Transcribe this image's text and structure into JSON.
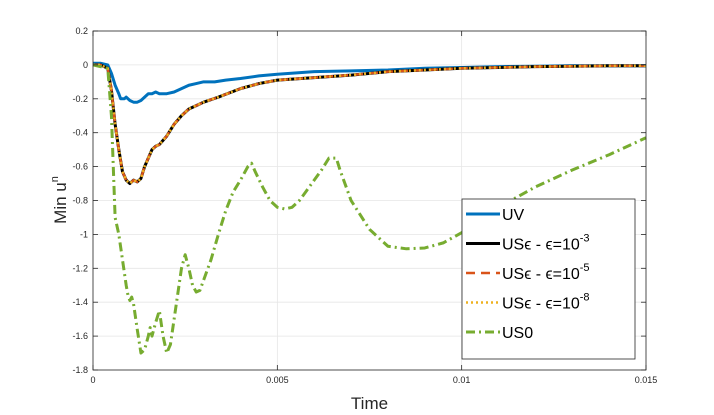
{
  "chart_data": {
    "type": "line",
    "title": "",
    "xlabel": "Time",
    "ylabel_base": "Min u",
    "ylabel_sup": "n",
    "xlim": [
      0,
      0.015
    ],
    "ylim": [
      -1.8,
      0.2
    ],
    "grid": true,
    "legend_position": "bottom-right",
    "x_ticks": [
      0,
      0.005,
      0.01,
      0.015
    ],
    "x_tick_labels": [
      "0",
      "0.005",
      "0.01",
      "0.015"
    ],
    "y_ticks": [
      0.2,
      0,
      -0.2,
      -0.4,
      -0.6,
      -0.8,
      -1,
      -1.2,
      -1.4,
      -1.6,
      -1.8
    ],
    "y_tick_labels": [
      "0.2",
      "0",
      "-0.2",
      "-0.4",
      "-0.6",
      "-0.8",
      "-1",
      "-1.2",
      "-1.4",
      "-1.6",
      "-1.8"
    ],
    "series": [
      {
        "name": "UV",
        "legend_base": "UV",
        "legend_eps": "",
        "legend_sup": "",
        "color": "#0072BD",
        "style": "solid",
        "width": 3,
        "points": [
          [
            0,
            0.01
          ],
          [
            0.0002,
            0.01
          ],
          [
            0.0004,
            0.0
          ],
          [
            0.0005,
            -0.05
          ],
          [
            0.0006,
            -0.12
          ],
          [
            0.0007,
            -0.17
          ],
          [
            0.00075,
            -0.2
          ],
          [
            0.00085,
            -0.2
          ],
          [
            0.0009,
            -0.19
          ],
          [
            0.001,
            -0.21
          ],
          [
            0.0011,
            -0.22
          ],
          [
            0.0012,
            -0.22
          ],
          [
            0.0013,
            -0.21
          ],
          [
            0.0014,
            -0.19
          ],
          [
            0.0015,
            -0.17
          ],
          [
            0.0016,
            -0.17
          ],
          [
            0.0017,
            -0.16
          ],
          [
            0.0018,
            -0.17
          ],
          [
            0.002,
            -0.17
          ],
          [
            0.0022,
            -0.16
          ],
          [
            0.0024,
            -0.14
          ],
          [
            0.0026,
            -0.12
          ],
          [
            0.0028,
            -0.11
          ],
          [
            0.003,
            -0.1
          ],
          [
            0.0033,
            -0.1
          ],
          [
            0.0036,
            -0.09
          ],
          [
            0.004,
            -0.08
          ],
          [
            0.0045,
            -0.065
          ],
          [
            0.005,
            -0.055
          ],
          [
            0.006,
            -0.04
          ],
          [
            0.007,
            -0.035
          ],
          [
            0.008,
            -0.03
          ],
          [
            0.009,
            -0.02
          ],
          [
            0.01,
            -0.015
          ],
          [
            0.011,
            -0.01
          ],
          [
            0.012,
            -0.008
          ],
          [
            0.013,
            -0.005
          ],
          [
            0.014,
            -0.005
          ],
          [
            0.015,
            -0.005
          ]
        ]
      },
      {
        "name": "USϵ - ϵ=10^-3",
        "legend_base": "US",
        "legend_eps": "ϵ",
        "legend_sup": "-3",
        "color": "#000000",
        "style": "solid",
        "width": 3,
        "points": [
          [
            0,
            0
          ],
          [
            0.0002,
            0
          ],
          [
            0.0004,
            -0.02
          ],
          [
            0.0005,
            -0.15
          ],
          [
            0.0006,
            -0.35
          ],
          [
            0.0007,
            -0.5
          ],
          [
            0.0008,
            -0.63
          ],
          [
            0.0009,
            -0.68
          ],
          [
            0.001,
            -0.7
          ],
          [
            0.0011,
            -0.68
          ],
          [
            0.0012,
            -0.69
          ],
          [
            0.0013,
            -0.67
          ],
          [
            0.0014,
            -0.6
          ],
          [
            0.0015,
            -0.55
          ],
          [
            0.0016,
            -0.5
          ],
          [
            0.0017,
            -0.48
          ],
          [
            0.0018,
            -0.47
          ],
          [
            0.002,
            -0.42
          ],
          [
            0.0022,
            -0.35
          ],
          [
            0.0024,
            -0.3
          ],
          [
            0.0026,
            -0.26
          ],
          [
            0.0028,
            -0.24
          ],
          [
            0.003,
            -0.22
          ],
          [
            0.0034,
            -0.19
          ],
          [
            0.004,
            -0.14
          ],
          [
            0.0045,
            -0.11
          ],
          [
            0.005,
            -0.09
          ],
          [
            0.006,
            -0.075
          ],
          [
            0.007,
            -0.06
          ],
          [
            0.008,
            -0.04
          ],
          [
            0.009,
            -0.03
          ],
          [
            0.01,
            -0.02
          ],
          [
            0.011,
            -0.015
          ],
          [
            0.012,
            -0.01
          ],
          [
            0.013,
            -0.008
          ],
          [
            0.014,
            -0.005
          ],
          [
            0.015,
            -0.005
          ]
        ]
      },
      {
        "name": "USϵ - ϵ=10^-5",
        "legend_base": "US",
        "legend_eps": "ϵ",
        "legend_sup": "-5",
        "color": "#D95319",
        "style": "dashed",
        "width": 2.5,
        "points": [
          [
            0,
            0
          ],
          [
            0.0002,
            0
          ],
          [
            0.0004,
            -0.02
          ],
          [
            0.0005,
            -0.15
          ],
          [
            0.0006,
            -0.35
          ],
          [
            0.0007,
            -0.5
          ],
          [
            0.0008,
            -0.63
          ],
          [
            0.0009,
            -0.68
          ],
          [
            0.001,
            -0.7
          ],
          [
            0.0011,
            -0.68
          ],
          [
            0.0012,
            -0.69
          ],
          [
            0.0013,
            -0.67
          ],
          [
            0.0014,
            -0.6
          ],
          [
            0.0015,
            -0.55
          ],
          [
            0.0016,
            -0.5
          ],
          [
            0.0017,
            -0.48
          ],
          [
            0.0018,
            -0.47
          ],
          [
            0.002,
            -0.42
          ],
          [
            0.0022,
            -0.35
          ],
          [
            0.0024,
            -0.3
          ],
          [
            0.0026,
            -0.26
          ],
          [
            0.0028,
            -0.24
          ],
          [
            0.003,
            -0.22
          ],
          [
            0.0034,
            -0.19
          ],
          [
            0.004,
            -0.14
          ],
          [
            0.0045,
            -0.11
          ],
          [
            0.005,
            -0.09
          ],
          [
            0.006,
            -0.075
          ],
          [
            0.007,
            -0.06
          ],
          [
            0.008,
            -0.04
          ],
          [
            0.009,
            -0.03
          ],
          [
            0.01,
            -0.02
          ],
          [
            0.011,
            -0.015
          ],
          [
            0.012,
            -0.01
          ],
          [
            0.013,
            -0.008
          ],
          [
            0.014,
            -0.005
          ],
          [
            0.015,
            -0.005
          ]
        ]
      },
      {
        "name": "USϵ - ϵ=10^-8",
        "legend_base": "US",
        "legend_eps": "ϵ",
        "legend_sup": "-8",
        "color": "#EDB120",
        "style": "dotted",
        "width": 2.5,
        "points": [
          [
            0,
            0
          ],
          [
            0.0002,
            0
          ],
          [
            0.0004,
            -0.02
          ],
          [
            0.0005,
            -0.15
          ],
          [
            0.0006,
            -0.35
          ],
          [
            0.0007,
            -0.5
          ],
          [
            0.0008,
            -0.63
          ],
          [
            0.0009,
            -0.68
          ],
          [
            0.001,
            -0.7
          ],
          [
            0.0011,
            -0.68
          ],
          [
            0.0012,
            -0.69
          ],
          [
            0.0013,
            -0.67
          ],
          [
            0.0014,
            -0.6
          ],
          [
            0.0015,
            -0.55
          ],
          [
            0.0016,
            -0.5
          ],
          [
            0.0017,
            -0.48
          ],
          [
            0.0018,
            -0.47
          ],
          [
            0.002,
            -0.42
          ],
          [
            0.0022,
            -0.35
          ],
          [
            0.0024,
            -0.3
          ],
          [
            0.0026,
            -0.26
          ],
          [
            0.0028,
            -0.24
          ],
          [
            0.003,
            -0.22
          ],
          [
            0.0034,
            -0.19
          ],
          [
            0.004,
            -0.14
          ],
          [
            0.0045,
            -0.11
          ],
          [
            0.005,
            -0.09
          ],
          [
            0.006,
            -0.075
          ],
          [
            0.007,
            -0.06
          ],
          [
            0.008,
            -0.04
          ],
          [
            0.009,
            -0.03
          ],
          [
            0.01,
            -0.02
          ],
          [
            0.011,
            -0.015
          ],
          [
            0.012,
            -0.01
          ],
          [
            0.013,
            -0.008
          ],
          [
            0.014,
            -0.005
          ],
          [
            0.015,
            -0.005
          ]
        ]
      },
      {
        "name": "US0",
        "legend_base": "US0",
        "legend_eps": "",
        "legend_sup": "",
        "color": "#77AC30",
        "style": "dashdot",
        "width": 3,
        "points": [
          [
            0,
            0
          ],
          [
            0.0004,
            -0.02
          ],
          [
            0.0005,
            -0.3
          ],
          [
            0.0006,
            -0.9
          ],
          [
            0.0007,
            -1.0
          ],
          [
            0.0008,
            -1.15
          ],
          [
            0.0009,
            -1.3
          ],
          [
            0.00095,
            -1.36
          ],
          [
            0.001,
            -1.39
          ],
          [
            0.00105,
            -1.37
          ],
          [
            0.0011,
            -1.41
          ],
          [
            0.0012,
            -1.56
          ],
          [
            0.0013,
            -1.7
          ],
          [
            0.0014,
            -1.68
          ],
          [
            0.0015,
            -1.6
          ],
          [
            0.00155,
            -1.55
          ],
          [
            0.0016,
            -1.6
          ],
          [
            0.0017,
            -1.52
          ],
          [
            0.0018,
            -1.45
          ],
          [
            0.0019,
            -1.6
          ],
          [
            0.002,
            -1.7
          ],
          [
            0.0021,
            -1.65
          ],
          [
            0.0022,
            -1.5
          ],
          [
            0.0023,
            -1.35
          ],
          [
            0.0024,
            -1.2
          ],
          [
            0.0025,
            -1.12
          ],
          [
            0.0026,
            -1.2
          ],
          [
            0.0027,
            -1.3
          ],
          [
            0.0028,
            -1.34
          ],
          [
            0.0029,
            -1.33
          ],
          [
            0.003,
            -1.27
          ],
          [
            0.0032,
            -1.15
          ],
          [
            0.0034,
            -1.0
          ],
          [
            0.0036,
            -0.86
          ],
          [
            0.0038,
            -0.75
          ],
          [
            0.004,
            -0.68
          ],
          [
            0.0042,
            -0.6
          ],
          [
            0.0043,
            -0.58
          ],
          [
            0.0044,
            -0.63
          ],
          [
            0.0046,
            -0.72
          ],
          [
            0.0048,
            -0.8
          ],
          [
            0.005,
            -0.84
          ],
          [
            0.0052,
            -0.85
          ],
          [
            0.0054,
            -0.84
          ],
          [
            0.0056,
            -0.8
          ],
          [
            0.0058,
            -0.74
          ],
          [
            0.006,
            -0.68
          ],
          [
            0.0062,
            -0.62
          ],
          [
            0.0064,
            -0.55
          ],
          [
            0.0066,
            -0.55
          ],
          [
            0.0067,
            -0.62
          ],
          [
            0.007,
            -0.8
          ],
          [
            0.0075,
            -0.97
          ],
          [
            0.008,
            -1.07
          ],
          [
            0.0085,
            -1.085
          ],
          [
            0.009,
            -1.08
          ],
          [
            0.0095,
            -1.05
          ],
          [
            0.01,
            -0.99
          ],
          [
            0.011,
            -0.84
          ],
          [
            0.012,
            -0.72
          ],
          [
            0.013,
            -0.62
          ],
          [
            0.014,
            -0.53
          ],
          [
            0.015,
            -0.43
          ]
        ]
      }
    ]
  }
}
